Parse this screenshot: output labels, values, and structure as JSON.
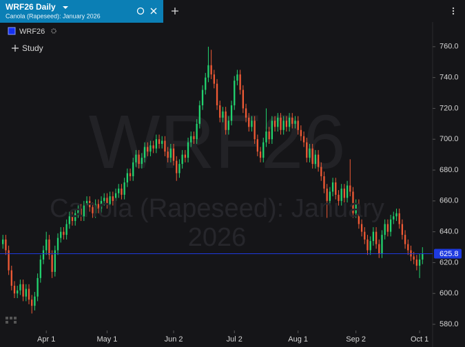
{
  "chart_data": {
    "type": "candlestick",
    "title": "WRF26 Daily",
    "subtitle": "Canola (Rapeseed): January 2026",
    "symbol": "WRF26",
    "study": "Study",
    "open": [
      632,
      635,
      628,
      615,
      605,
      600,
      602,
      606,
      598,
      603,
      596,
      592,
      598,
      610,
      622,
      628,
      635,
      625,
      614,
      628,
      636,
      640,
      638,
      645,
      650,
      647,
      652,
      655,
      650,
      657,
      660,
      656,
      652,
      658,
      655,
      660,
      662,
      658,
      663,
      660,
      665,
      668,
      664,
      672,
      678,
      676,
      685,
      690,
      684,
      688,
      695,
      692,
      696,
      694,
      700,
      697,
      699,
      692,
      688,
      694,
      686,
      678,
      684,
      690,
      688,
      698,
      702,
      700,
      710,
      722,
      732,
      740,
      748,
      742,
      736,
      722,
      714,
      718,
      706,
      712,
      722,
      738,
      742,
      732,
      720,
      714,
      708,
      712,
      700,
      692,
      688,
      698,
      705,
      700,
      712,
      708,
      714,
      706,
      712,
      708,
      714,
      710,
      712,
      706,
      702,
      698,
      688,
      694,
      684,
      690,
      682,
      676,
      668,
      660,
      666,
      672,
      664,
      660,
      668,
      662,
      670,
      666,
      652,
      658,
      645,
      640,
      635,
      628,
      634,
      640,
      632,
      626,
      638,
      645,
      640,
      648,
      650,
      652,
      645,
      638,
      632,
      628,
      624,
      622,
      618,
      622
    ],
    "high": [
      638,
      638,
      631,
      618,
      608,
      605,
      609,
      609,
      606,
      606,
      599,
      601,
      613,
      625,
      631,
      640,
      638,
      628,
      631,
      639,
      643,
      643,
      648,
      653,
      653,
      655,
      658,
      658,
      660,
      663,
      663,
      659,
      661,
      661,
      663,
      665,
      665,
      666,
      666,
      668,
      671,
      671,
      675,
      681,
      681,
      688,
      693,
      693,
      691,
      698,
      698,
      699,
      699,
      703,
      703,
      702,
      702,
      695,
      697,
      697,
      689,
      687,
      693,
      693,
      701,
      705,
      705,
      713,
      725,
      735,
      743,
      760,
      758,
      745,
      739,
      725,
      721,
      721,
      715,
      725,
      741,
      745,
      745,
      735,
      723,
      717,
      715,
      715,
      703,
      695,
      701,
      720,
      708,
      715,
      715,
      717,
      717,
      715,
      715,
      717,
      717,
      715,
      715,
      709,
      705,
      701,
      697,
      697,
      693,
      693,
      685,
      679,
      671,
      669,
      675,
      675,
      667,
      671,
      671,
      673,
      687,
      669,
      661,
      661,
      648,
      643,
      638,
      637,
      643,
      643,
      635,
      641,
      648,
      648,
      651,
      653,
      655,
      655,
      648,
      641,
      635,
      631,
      627,
      625,
      626,
      630
    ],
    "low": [
      629,
      625,
      612,
      602,
      597,
      597,
      599,
      595,
      595,
      593,
      587,
      589,
      595,
      607,
      619,
      625,
      622,
      610,
      611,
      625,
      633,
      635,
      635,
      642,
      644,
      644,
      649,
      647,
      647,
      654,
      653,
      649,
      649,
      652,
      652,
      657,
      655,
      655,
      657,
      657,
      662,
      661,
      661,
      669,
      673,
      673,
      682,
      681,
      681,
      685,
      689,
      689,
      691,
      691,
      694,
      694,
      689,
      685,
      685,
      683,
      673,
      675,
      681,
      685,
      685,
      695,
      697,
      697,
      707,
      719,
      729,
      737,
      739,
      733,
      719,
      711,
      711,
      703,
      703,
      709,
      719,
      735,
      729,
      717,
      711,
      705,
      705,
      697,
      689,
      685,
      685,
      695,
      697,
      697,
      705,
      705,
      703,
      703,
      705,
      705,
      707,
      707,
      703,
      699,
      695,
      685,
      685,
      681,
      681,
      679,
      673,
      665,
      649,
      657,
      663,
      661,
      657,
      657,
      659,
      659,
      663,
      649,
      649,
      642,
      637,
      632,
      625,
      625,
      631,
      629,
      623,
      623,
      635,
      637,
      637,
      645,
      647,
      642,
      635,
      629,
      625,
      621,
      619,
      615,
      610,
      619
    ],
    "close": [
      635,
      628,
      615,
      605,
      600,
      602,
      606,
      598,
      603,
      596,
      592,
      598,
      610,
      622,
      628,
      635,
      625,
      614,
      628,
      636,
      640,
      638,
      645,
      650,
      647,
      652,
      655,
      650,
      657,
      660,
      656,
      652,
      658,
      655,
      660,
      662,
      658,
      663,
      660,
      665,
      668,
      664,
      672,
      678,
      676,
      685,
      690,
      684,
      688,
      695,
      692,
      696,
      694,
      700,
      697,
      699,
      692,
      688,
      694,
      686,
      678,
      684,
      690,
      688,
      698,
      702,
      700,
      710,
      722,
      732,
      740,
      748,
      742,
      736,
      722,
      714,
      718,
      706,
      712,
      722,
      738,
      742,
      732,
      720,
      714,
      708,
      712,
      700,
      692,
      688,
      698,
      705,
      700,
      712,
      708,
      714,
      706,
      712,
      708,
      714,
      710,
      712,
      706,
      702,
      698,
      688,
      694,
      684,
      690,
      682,
      676,
      668,
      660,
      666,
      672,
      664,
      660,
      668,
      662,
      670,
      666,
      652,
      658,
      645,
      640,
      635,
      628,
      634,
      640,
      632,
      626,
      638,
      645,
      640,
      648,
      650,
      652,
      645,
      638,
      632,
      628,
      624,
      622,
      618,
      622,
      625.8
    ],
    "up_color": "#22d36f",
    "down_color": "#f05a35",
    "legend_color": "#1530f0",
    "last_price": 625.8,
    "last_price_color": "#1e3ae0",
    "xlim": [
      -1,
      148.5
    ],
    "xticks": [
      {
        "value": 15,
        "label": "Apr 1"
      },
      {
        "value": 36,
        "label": "May 1"
      },
      {
        "value": 59,
        "label": "Jun 2"
      },
      {
        "value": 80,
        "label": "Jul 2"
      },
      {
        "value": 102,
        "label": "Aug 1"
      },
      {
        "value": 122,
        "label": "Sep 2"
      },
      {
        "value": 144,
        "label": "Oct 1"
      }
    ],
    "ylim": [
      576,
      776
    ],
    "yticks": [
      {
        "value": 580,
        "label": "580.0"
      },
      {
        "value": 600,
        "label": "600.0"
      },
      {
        "value": 620,
        "label": "620.0"
      },
      {
        "value": 640,
        "label": "640.0"
      },
      {
        "value": 660,
        "label": "660.0"
      },
      {
        "value": 680,
        "label": "680.0"
      },
      {
        "value": 700,
        "label": "700.0"
      },
      {
        "value": 720,
        "label": "720.0"
      },
      {
        "value": 740,
        "label": "740.0"
      },
      {
        "value": 760,
        "label": "760.0"
      }
    ]
  }
}
